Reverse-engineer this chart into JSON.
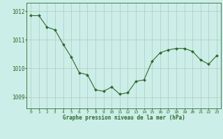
{
  "x": [
    0,
    1,
    2,
    3,
    4,
    5,
    6,
    7,
    8,
    9,
    10,
    11,
    12,
    13,
    14,
    15,
    16,
    17,
    18,
    19,
    20,
    21,
    22,
    23
  ],
  "y": [
    1011.85,
    1011.85,
    1011.45,
    1011.35,
    1010.85,
    1010.4,
    1009.85,
    1009.78,
    1009.25,
    1009.2,
    1009.35,
    1009.1,
    1009.15,
    1009.55,
    1009.6,
    1010.25,
    1010.55,
    1010.65,
    1010.7,
    1010.7,
    1010.6,
    1010.3,
    1010.15,
    1010.45
  ],
  "line_color": "#2d6a2d",
  "marker_color": "#2d6a2d",
  "bg_color": "#cceee8",
  "grid_color": "#b0c8c0",
  "axis_color": "#2d6a2d",
  "xlabel": "Graphe pression niveau de la mer (hPa)",
  "yticks": [
    1009,
    1010,
    1011,
    1012
  ],
  "xticks": [
    0,
    1,
    2,
    3,
    4,
    5,
    6,
    7,
    8,
    9,
    10,
    11,
    12,
    13,
    14,
    15,
    16,
    17,
    18,
    19,
    20,
    21,
    22,
    23
  ],
  "ylim": [
    1008.6,
    1012.3
  ],
  "xlim": [
    -0.5,
    23.5
  ]
}
